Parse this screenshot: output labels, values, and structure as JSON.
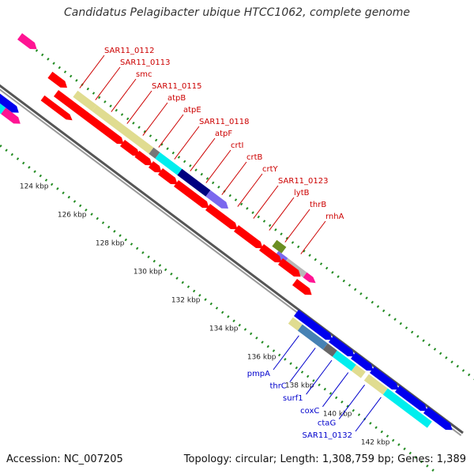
{
  "header": {
    "title": "Candidatus Pelagibacter ubique HTCC1062, complete genome"
  },
  "footer": {
    "accession_label": "Accession:",
    "accession_value": "NC_007205",
    "topology_label": "Topology:",
    "topology_value": "circular",
    "length_label": "Length:",
    "length_value": "1,308,759 bp",
    "genes_label": "Genes:",
    "genes_value": "1,389"
  },
  "colors": {
    "red": "#ff0000",
    "blue": "#0000ee",
    "cyan": "#00eeee",
    "khaki": "#e0dc90",
    "navy": "#000080",
    "slate": "#7b68ee",
    "pink": "#ff1493",
    "olive": "#6b8e23",
    "gray": "#b8b8b8",
    "steel": "#4682b4",
    "green_tick": "#228b22",
    "label_red": "#cc0000",
    "label_blue": "#0000cc"
  },
  "ticks": [
    "124 kbp",
    "126 kbp",
    "128 kbp",
    "130 kbp",
    "132 kbp",
    "134 kbp",
    "136 kbp",
    "138 kbp",
    "140 kbp",
    "142 kbp"
  ],
  "upper_labels": [
    {
      "name": "SAR11_0112",
      "kind": "red"
    },
    {
      "name": "SAR11_0113",
      "kind": "red"
    },
    {
      "name": "smc",
      "kind": "red"
    },
    {
      "name": "SAR11_0115",
      "kind": "red"
    },
    {
      "name": "atpB",
      "kind": "red"
    },
    {
      "name": "atpE",
      "kind": "red"
    },
    {
      "name": "SAR11_0118",
      "kind": "red"
    },
    {
      "name": "atpF",
      "kind": "red"
    },
    {
      "name": "crtI",
      "kind": "red"
    },
    {
      "name": "crtB",
      "kind": "red"
    },
    {
      "name": "crtY",
      "kind": "red"
    },
    {
      "name": "SAR11_0123",
      "kind": "red"
    },
    {
      "name": "lytB",
      "kind": "red"
    },
    {
      "name": "thrB",
      "kind": "red"
    },
    {
      "name": "rnhA",
      "kind": "red"
    }
  ],
  "lower_labels": [
    {
      "name": "pmpA",
      "kind": "blue"
    },
    {
      "name": "thrC",
      "kind": "blue"
    },
    {
      "name": "surf1",
      "kind": "blue"
    },
    {
      "name": "coxC",
      "kind": "blue"
    },
    {
      "name": "ctaG",
      "kind": "blue"
    },
    {
      "name": "SAR11_0132",
      "kind": "blue"
    }
  ]
}
